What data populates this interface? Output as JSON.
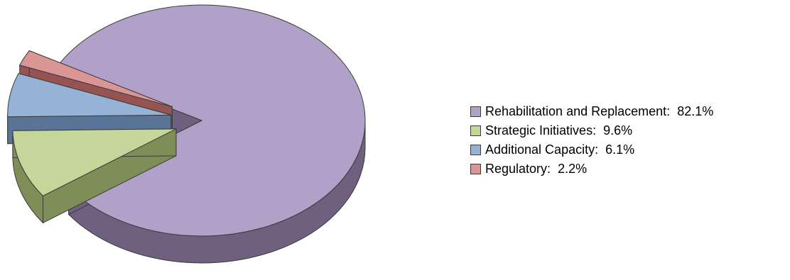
{
  "chart_data": {
    "type": "pie",
    "style": "3d-exploded",
    "slices": [
      {
        "label": "Rehabilitation and Replacement",
        "value": 82.1,
        "value_text": "82.1%",
        "color": "#b1a0c7",
        "side_color": "#6f6080"
      },
      {
        "label": "Strategic Initiatives",
        "value": 9.6,
        "value_text": "9.6%",
        "color": "#c5d69b",
        "side_color": "#7f8e57"
      },
      {
        "label": "Additional Capacity",
        "value": 6.1,
        "value_text": "6.1%",
        "color": "#95b3d7",
        "side_color": "#5a7497"
      },
      {
        "label": "Regulatory",
        "value": 2.2,
        "value_text": "2.2%",
        "color": "#d99694",
        "side_color": "#955352"
      }
    ],
    "legend_position": "right"
  }
}
